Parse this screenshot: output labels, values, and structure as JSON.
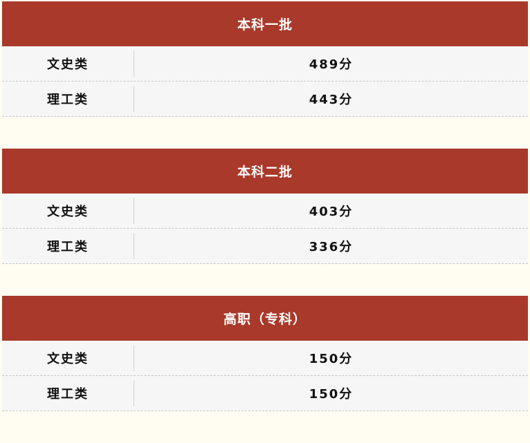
{
  "blocks": [
    {
      "title": "本科一批",
      "rows": [
        {
          "label": "文史类",
          "value": "489分"
        },
        {
          "label": "理工类",
          "value": "443分"
        }
      ]
    },
    {
      "title": "本科二批",
      "rows": [
        {
          "label": "文史类",
          "value": "403分"
        },
        {
          "label": "理工类",
          "value": "336分"
        }
      ]
    },
    {
      "title": "高职（专科）",
      "rows": [
        {
          "label": "文史类",
          "value": "150分"
        },
        {
          "label": "理工类",
          "value": "150分"
        }
      ]
    }
  ],
  "colors": {
    "header": "#a9392a",
    "row": "#f6f6f6",
    "background": "#fffdf1"
  }
}
